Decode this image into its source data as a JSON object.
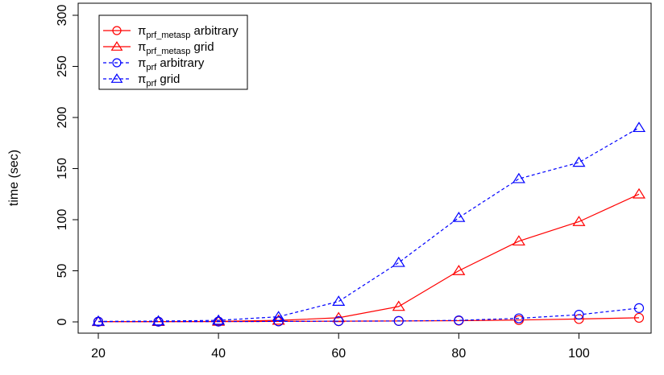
{
  "chart_data": {
    "type": "line",
    "title": "",
    "xlabel": "",
    "ylabel": "time (sec)",
    "xlim": [
      20,
      110
    ],
    "ylim": [
      0,
      300
    ],
    "x_ticks": [
      20,
      40,
      60,
      80,
      100
    ],
    "y_ticks": [
      0,
      50,
      100,
      150,
      200,
      250,
      300
    ],
    "x": [
      20,
      30,
      40,
      50,
      60,
      70,
      80,
      90,
      100,
      110
    ],
    "grid": false,
    "legend_position": "top-left",
    "series": [
      {
        "name_main": "π",
        "name_sub": "prf_metasp",
        "name_rest": " arbitrary",
        "color": "#ff0000",
        "marker": "circle",
        "line_style": "solid",
        "values": [
          0.2,
          0.2,
          0.3,
          0.5,
          0.7,
          0.9,
          1.2,
          1.8,
          2.8,
          4.0
        ]
      },
      {
        "name_main": "π",
        "name_sub": "prf_metasp",
        "name_rest": " grid",
        "color": "#ff0000",
        "marker": "triangle",
        "line_style": "solid",
        "values": [
          0.2,
          0.3,
          0.5,
          1.5,
          4.0,
          15.0,
          50.0,
          79.0,
          98.0,
          125.0
        ]
      },
      {
        "name_main": "π",
        "name_sub": "prf",
        "name_rest": " arbitrary",
        "color": "#0000ff",
        "marker": "circle",
        "line_style": "dashed",
        "values": [
          0.2,
          0.2,
          0.3,
          0.5,
          0.7,
          0.9,
          1.5,
          3.5,
          7.0,
          13.5
        ]
      },
      {
        "name_main": "π",
        "name_sub": "prf",
        "name_rest": " grid",
        "color": "#0000ff",
        "marker": "triangle",
        "line_style": "dashed",
        "values": [
          0.5,
          0.8,
          1.5,
          5.0,
          20.0,
          58.0,
          102.0,
          140.0,
          156.0,
          190.0
        ]
      }
    ]
  }
}
